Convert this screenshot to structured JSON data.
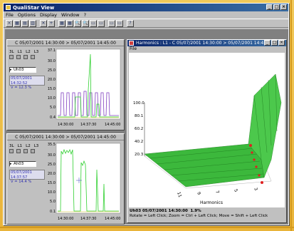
{
  "window": {
    "title": "QualiStar View",
    "buttons": [
      "_",
      "□",
      "×"
    ]
  },
  "menu": [
    "File",
    "Options",
    "Display",
    "Window",
    "?"
  ],
  "toolbar": [
    "×",
    "▦",
    "▤",
    "▥",
    "✕",
    "+",
    "▦",
    "▦",
    "🔍",
    "🔍",
    "▭",
    "▭",
    "▭",
    "▭",
    "?"
  ],
  "panel_top": {
    "title": "C 05/07/2001 14:30:00 > 05/07/2001 14:45:00",
    "channels": [
      "3L",
      "L1",
      "L2",
      "L3"
    ],
    "selector": "Uh03",
    "readout_time": "05/07/2001 14:32:52",
    "readout_value": "V = 12.3 %",
    "y_ticks": [
      "37.1",
      "30.0",
      "25.0",
      "20.0",
      "15.0",
      "10.0",
      "5.0",
      "0.4"
    ],
    "x_ticks": [
      "14:30:00",
      "14:37:30",
      "14:45:00"
    ]
  },
  "panel_bottom": {
    "title": "C 05/07/2001 14:30:00 > 05/07/2001 14:45:00",
    "channels": [
      "3L",
      "L1",
      "L2",
      "L3"
    ],
    "selector": "Ah03",
    "readout_time": "05/07/2001 14:37:57",
    "readout_value": "V = 14.4 %",
    "y_ticks": [
      "35.5",
      "30.0",
      "25.0",
      "20.0",
      "15.0",
      "10.0",
      "5.0",
      "0.1"
    ],
    "x_ticks": [
      "14:30:00",
      "14:37:30",
      "14:45:00"
    ]
  },
  "harmonics": {
    "title": "Harmonics : L1 - C 05/07/2001 14:30:00 > 05/07/2001 14:4...",
    "menu": "File",
    "z_ticks": [
      "100.0",
      "80.1",
      "60.2",
      "40.2",
      "20.3"
    ],
    "x_ticks": [
      "11",
      "9",
      "7",
      "5",
      "3"
    ],
    "x_label": "Harmonics",
    "status_line1_a": "Uh03  05/07/2001 14:30:00",
    "status_line1_b": "1.9%",
    "status_line2": "Rotate = Left Click; Zoom = Ctrl + Left Click; Move = Shift + Left Click"
  },
  "colors": {
    "surface": "#3cb83c",
    "trace_green": "#30d030",
    "trace_purple": "#8040c0",
    "marker_red": "#e02020"
  }
}
